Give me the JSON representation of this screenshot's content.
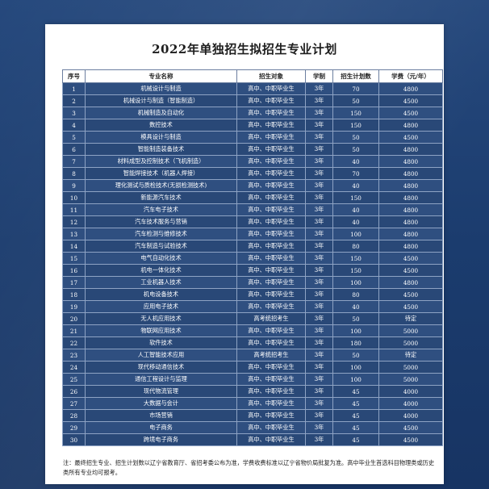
{
  "title": "2022年单独招生拟招生专业计划",
  "headers": [
    "序号",
    "专业名称",
    "招生对象",
    "学制",
    "招生计划数",
    "学费（元/年）"
  ],
  "rows": [
    [
      "1",
      "机械设计与制造",
      "高中、中职毕业生",
      "3年",
      "70",
      "4800"
    ],
    [
      "2",
      "机械设计与制造（智能制造）",
      "高中、中职毕业生",
      "3年",
      "50",
      "4500"
    ],
    [
      "3",
      "机械制造及自动化",
      "高中、中职毕业生",
      "3年",
      "150",
      "4500"
    ],
    [
      "4",
      "数控技术",
      "高中、中职毕业生",
      "3年",
      "150",
      "4800"
    ],
    [
      "5",
      "模具设计与制造",
      "高中、中职毕业生",
      "3年",
      "50",
      "4500"
    ],
    [
      "6",
      "智能制造装备技术",
      "高中、中职毕业生",
      "3年",
      "50",
      "4800"
    ],
    [
      "7",
      "材料成型及控制技术（飞机制造）",
      "高中、中职毕业生",
      "3年",
      "40",
      "4800"
    ],
    [
      "8",
      "智能焊接技术（机器人焊接）",
      "高中、中职毕业生",
      "3年",
      "70",
      "4800"
    ],
    [
      "9",
      "理化测试与质检技术(无损检测技术)",
      "高中、中职毕业生",
      "3年",
      "40",
      "4800"
    ],
    [
      "10",
      "新能源汽车技术",
      "高中、中职毕业生",
      "3年",
      "150",
      "4800"
    ],
    [
      "11",
      "汽车电子技术",
      "高中、中职毕业生",
      "3年",
      "40",
      "4800"
    ],
    [
      "12",
      "汽车技术服务与营销",
      "高中、中职毕业生",
      "3年",
      "40",
      "4800"
    ],
    [
      "13",
      "汽车检测与维修技术",
      "高中、中职毕业生",
      "3年",
      "100",
      "4800"
    ],
    [
      "14",
      "汽车制造与试验技术",
      "高中、中职毕业生",
      "3年",
      "80",
      "4800"
    ],
    [
      "15",
      "电气自动化技术",
      "高中、中职毕业生",
      "3年",
      "150",
      "4500"
    ],
    [
      "16",
      "机电一体化技术",
      "高中、中职毕业生",
      "3年",
      "150",
      "4500"
    ],
    [
      "17",
      "工业机器人技术",
      "高中、中职毕业生",
      "3年",
      "100",
      "4800"
    ],
    [
      "18",
      "机电设备技术",
      "高中、中职毕业生",
      "3年",
      "80",
      "4500"
    ],
    [
      "19",
      "应用电子技术",
      "高中、中职毕业生",
      "3年",
      "40",
      "4500"
    ],
    [
      "20",
      "无人机应用技术",
      "高考统招考生",
      "3年",
      "50",
      "待定"
    ],
    [
      "21",
      "物联网应用技术",
      "高中、中职毕业生",
      "3年",
      "100",
      "5000"
    ],
    [
      "22",
      "软件技术",
      "高中、中职毕业生",
      "3年",
      "180",
      "5000"
    ],
    [
      "23",
      "人工智能技术应用",
      "高考统招考生",
      "3年",
      "50",
      "待定"
    ],
    [
      "24",
      "现代移动通信技术",
      "高中、中职毕业生",
      "3年",
      "100",
      "5000"
    ],
    [
      "25",
      "通信工程设计与监理",
      "高中、中职毕业生",
      "3年",
      "100",
      "5000"
    ],
    [
      "26",
      "现代物流管理",
      "高中、中职毕业生",
      "3年",
      "45",
      "4000"
    ],
    [
      "27",
      "大数据与会计",
      "高中、中职毕业生",
      "3年",
      "45",
      "4000"
    ],
    [
      "28",
      "市场营销",
      "高中、中职毕业生",
      "3年",
      "45",
      "4000"
    ],
    [
      "29",
      "电子商务",
      "高中、中职毕业生",
      "3年",
      "45",
      "4500"
    ],
    [
      "30",
      "跨境电子商务",
      "高中、中职毕业生",
      "3年",
      "45",
      "4500"
    ]
  ],
  "note": "注：最终招生专业、招生计划数以辽宁省教育厅、省招考委公布为准，学费收费标准以辽宁省物价局批复为准。高中毕业生首选科目物理类或历史类所有专业均可报考。",
  "colors": {
    "background": "#1a3a6b",
    "row": "#2f4f80",
    "header": "#ffffff"
  }
}
